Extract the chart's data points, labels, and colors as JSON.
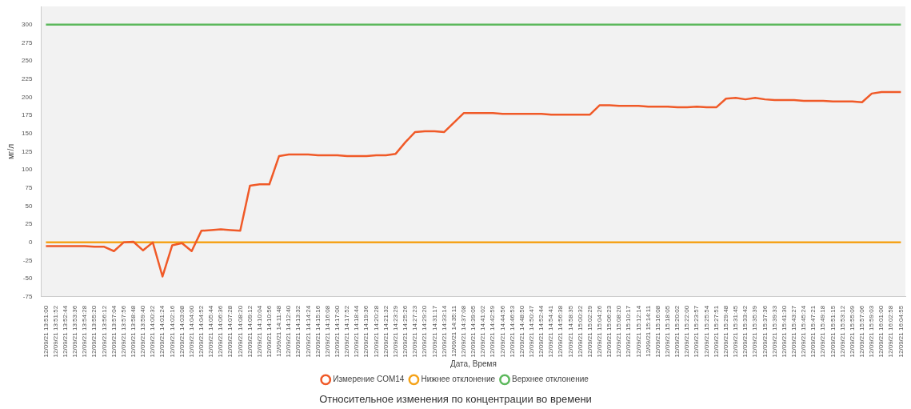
{
  "chart_data": {
    "type": "line",
    "title": "Относительное изменения по концентрации во времени",
    "xlabel": "Дата, Время",
    "ylabel": "мг/л",
    "categories": [
      "12/09/21 13:51:00",
      "12/09/21 13:51:52",
      "12/09/21 13:52:44",
      "12/09/21 13:53:36",
      "12/09/21 13:54:28",
      "12/09/21 13:55:20",
      "12/09/21 13:56:12",
      "12/09/21 13:57:04",
      "12/09/21 13:57:56",
      "12/09/21 13:58:48",
      "12/09/21 13:59:40",
      "12/09/21 14:00:32",
      "12/09/21 14:01:24",
      "12/09/21 14:02:16",
      "12/09/21 14:03:08",
      "12/09/21 14:04:00",
      "12/09/21 14:04:52",
      "12/09/21 14:05:44",
      "12/09/21 14:06:36",
      "12/09/21 14:07:28",
      "12/09/21 14:08:20",
      "12/09/21 14:09:12",
      "12/09/21 14:10:04",
      "12/09/21 14:10:56",
      "12/09/21 14:11:48",
      "12/09/21 14:12:40",
      "12/09/21 14:13:32",
      "12/09/21 14:14:24",
      "12/09/21 14:15:16",
      "12/09/21 14:16:08",
      "12/09/21 14:17:00",
      "12/09/21 14:17:52",
      "12/09/21 14:18:44",
      "12/09/21 14:19:36",
      "12/09/21 14:20:28",
      "12/09/21 14:21:32",
      "12/09/21 14:23:29",
      "12/09/21 14:25:26",
      "12/09/21 14:27:23",
      "12/09/21 14:29:20",
      "12/09/21 14:31:17",
      "12/09/21 14:33:14",
      "12/09/21 14:35:11",
      "12/09/21 14:37:08",
      "12/09/21 14:39:05",
      "12/09/21 14:41:02",
      "12/09/21 14:42:59",
      "12/09/21 14:44:56",
      "12/09/21 14:46:53",
      "12/09/21 14:48:50",
      "12/09/21 14:50:47",
      "12/09/21 14:52:44",
      "12/09/21 14:54:41",
      "12/09/21 14:56:38",
      "12/09/21 14:58:35",
      "12/09/21 15:00:32",
      "12/09/21 15:02:29",
      "12/09/21 15:04:26",
      "12/09/21 15:06:23",
      "12/09/21 15:08:20",
      "12/09/21 15:10:17",
      "12/09/21 15:12:14",
      "12/09/21 15:14:11",
      "12/09/21 15:16:08",
      "12/09/21 15:18:05",
      "12/09/21 15:20:02",
      "12/09/21 15:22:00",
      "12/09/21 15:23:57",
      "12/09/21 15:25:54",
      "12/09/21 15:27:51",
      "12/09/21 15:29:48",
      "12/09/21 15:31:45",
      "12/09/21 15:33:42",
      "12/09/21 15:35:39",
      "12/09/21 15:37:36",
      "12/09/21 15:39:33",
      "12/09/21 15:41:30",
      "12/09/21 15:43:27",
      "12/09/21 15:45:24",
      "12/09/21 15:47:21",
      "12/09/21 15:49:18",
      "12/09/21 15:51:15",
      "12/09/21 15:53:12",
      "12/09/21 15:55:09",
      "12/09/21 15:57:06",
      "12/09/21 15:59:03",
      "12/09/21 16:01:00",
      "12/09/21 16:02:58",
      "12/09/21 16:04:55"
    ],
    "series": [
      {
        "name": "Измерение COM14",
        "color": "#f05a28",
        "values": [
          -5,
          -5,
          -5,
          -5,
          -5,
          -6,
          -6,
          -12,
          0,
          1,
          -11,
          0,
          -47,
          -4,
          -1,
          -12,
          16,
          17,
          18,
          17,
          16,
          78,
          80,
          80,
          119,
          121,
          121,
          121,
          120,
          120,
          120,
          119,
          119,
          119,
          120,
          120,
          122,
          138,
          152,
          153,
          153,
          152,
          165,
          178,
          178,
          178,
          178,
          177,
          177,
          177,
          177,
          177,
          176,
          176,
          176,
          176,
          176,
          189,
          189,
          188,
          188,
          188,
          187,
          187,
          187,
          186,
          186,
          187,
          186,
          186,
          198,
          199,
          197,
          199,
          197,
          196,
          196,
          196,
          195,
          195,
          195,
          194,
          194,
          194,
          193,
          205,
          207,
          207,
          207
        ]
      },
      {
        "name": "Нижнее отклонение",
        "color": "#f5a31a",
        "values": [
          0,
          0,
          0,
          0,
          0,
          0,
          0,
          0,
          0,
          0,
          0,
          0,
          0,
          0,
          0,
          0,
          0,
          0,
          0,
          0,
          0,
          0,
          0,
          0,
          0,
          0,
          0,
          0,
          0,
          0,
          0,
          0,
          0,
          0,
          0,
          0,
          0,
          0,
          0,
          0,
          0,
          0,
          0,
          0,
          0,
          0,
          0,
          0,
          0,
          0,
          0,
          0,
          0,
          0,
          0,
          0,
          0,
          0,
          0,
          0,
          0,
          0,
          0,
          0,
          0,
          0,
          0,
          0,
          0,
          0,
          0,
          0,
          0,
          0,
          0,
          0,
          0,
          0,
          0,
          0,
          0,
          0,
          0,
          0,
          0,
          0,
          0,
          0,
          0
        ]
      },
      {
        "name": "Верхнее отклонение",
        "color": "#5cb85c",
        "values": [
          300,
          300,
          300,
          300,
          300,
          300,
          300,
          300,
          300,
          300,
          300,
          300,
          300,
          300,
          300,
          300,
          300,
          300,
          300,
          300,
          300,
          300,
          300,
          300,
          300,
          300,
          300,
          300,
          300,
          300,
          300,
          300,
          300,
          300,
          300,
          300,
          300,
          300,
          300,
          300,
          300,
          300,
          300,
          300,
          300,
          300,
          300,
          300,
          300,
          300,
          300,
          300,
          300,
          300,
          300,
          300,
          300,
          300,
          300,
          300,
          300,
          300,
          300,
          300,
          300,
          300,
          300,
          300,
          300,
          300,
          300,
          300,
          300,
          300,
          300,
          300,
          300,
          300,
          300,
          300,
          300,
          300,
          300,
          300,
          300,
          300,
          300,
          300,
          300
        ]
      }
    ],
    "ylim": [
      -75,
      325
    ],
    "yticks": [
      -75,
      -50,
      -25,
      0,
      25,
      50,
      75,
      100,
      125,
      150,
      175,
      200,
      225,
      250,
      275,
      300
    ],
    "legend": "bottom",
    "grid": false,
    "marker": "none",
    "line_style": "solid"
  }
}
